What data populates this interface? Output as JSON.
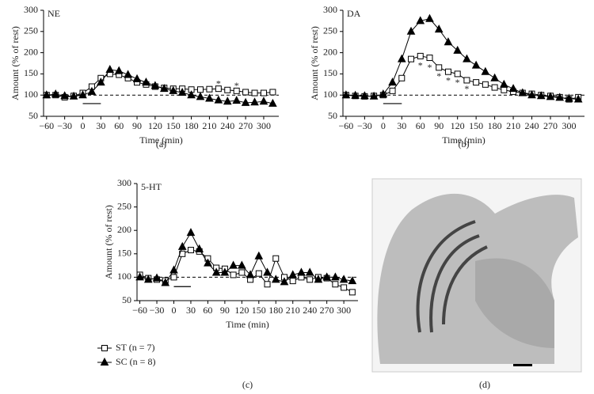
{
  "chart_data": [
    {
      "type": "line",
      "panel": "(a)",
      "label": "NE",
      "x_label": "Time (min)",
      "y_label": "Amount (% of rest)",
      "x": [
        -60,
        -45,
        -30,
        -15,
        0,
        15,
        30,
        45,
        60,
        75,
        90,
        105,
        120,
        135,
        150,
        165,
        180,
        195,
        210,
        225,
        240,
        255,
        270,
        285,
        300,
        315
      ],
      "series": [
        {
          "marker": "square",
          "color": "#000000",
          "fill": "#ffffff",
          "values": [
            100,
            100,
            95,
            98,
            105,
            120,
            140,
            150,
            148,
            140,
            130,
            125,
            120,
            117,
            115,
            115,
            113,
            113,
            114,
            115,
            112,
            110,
            107,
            105,
            105,
            107
          ]
        },
        {
          "marker": "triangle",
          "color": "#000000",
          "fill": "#000000",
          "values": [
            100,
            102,
            98,
            97,
            100,
            108,
            130,
            160,
            157,
            148,
            138,
            130,
            122,
            115,
            110,
            106,
            100,
            96,
            92,
            88,
            85,
            87,
            82,
            83,
            85,
            80
          ]
        }
      ],
      "annotations": [
        {
          "text": "*",
          "x": 225,
          "y": 125
        },
        {
          "text": "*",
          "x": 255,
          "y": 120
        }
      ],
      "reference_line": 100,
      "stimulus_bar": [
        0,
        30
      ],
      "stimulus_bar_level": 80,
      "xlim": [
        -65,
        325
      ],
      "ylim": [
        50,
        300
      ],
      "xticks": [
        {
          "value": -60,
          "label": "−60"
        },
        {
          "value": -30,
          "label": "−30"
        },
        0,
        30,
        60,
        90,
        120,
        150,
        180,
        210,
        240,
        270,
        300
      ],
      "yticks": [
        50,
        100,
        150,
        200,
        250,
        300
      ]
    },
    {
      "type": "line",
      "panel": "(b)",
      "label": "DA",
      "x_label": "Time (min)",
      "y_label": "Amount (% of rest)",
      "x": [
        -60,
        -45,
        -30,
        -15,
        0,
        15,
        30,
        45,
        60,
        75,
        90,
        105,
        120,
        135,
        150,
        165,
        180,
        195,
        210,
        225,
        240,
        255,
        270,
        285,
        300,
        315
      ],
      "series": [
        {
          "marker": "square",
          "color": "#000000",
          "fill": "#ffffff",
          "values": [
            100,
            98,
            97,
            98,
            100,
            110,
            140,
            185,
            192,
            188,
            165,
            155,
            150,
            135,
            130,
            125,
            118,
            112,
            108,
            105,
            103,
            100,
            98,
            95,
            90,
            95
          ]
        },
        {
          "marker": "triangle",
          "color": "#000000",
          "fill": "#000000",
          "values": [
            100,
            99,
            98,
            97,
            102,
            130,
            185,
            250,
            275,
            280,
            255,
            225,
            205,
            185,
            170,
            155,
            140,
            125,
            115,
            105,
            100,
            98,
            96,
            94,
            92,
            90
          ]
        }
      ],
      "annotations": [
        {
          "text": "*",
          "x": 60,
          "y": 168
        },
        {
          "text": "*",
          "x": 75,
          "y": 163
        },
        {
          "text": "*",
          "x": 90,
          "y": 143
        },
        {
          "text": "*",
          "x": 105,
          "y": 133
        },
        {
          "text": "*",
          "x": 120,
          "y": 128
        },
        {
          "text": "*",
          "x": 135,
          "y": 113
        }
      ],
      "reference_line": 100,
      "stimulus_bar": [
        0,
        30
      ],
      "stimulus_bar_level": 80,
      "xlim": [
        -65,
        325
      ],
      "ylim": [
        50,
        300
      ],
      "xticks": [
        {
          "value": -60,
          "label": "−60"
        },
        {
          "value": -30,
          "label": "−30"
        },
        0,
        30,
        60,
        90,
        120,
        150,
        180,
        210,
        240,
        270,
        300
      ],
      "yticks": [
        50,
        100,
        150,
        200,
        250,
        300
      ]
    },
    {
      "type": "line",
      "panel": "(c)",
      "label": "5-HT",
      "x_label": "Time (min)",
      "y_label": "Amount (% of rest)",
      "x": [
        -60,
        -45,
        -30,
        -15,
        0,
        15,
        30,
        45,
        60,
        75,
        90,
        105,
        120,
        135,
        150,
        165,
        180,
        195,
        210,
        225,
        240,
        255,
        270,
        285,
        300,
        315
      ],
      "series": [
        {
          "name": "ST (n = 7)",
          "marker": "square",
          "color": "#000000",
          "fill": "#ffffff",
          "values": [
            105,
            98,
            95,
            93,
            100,
            150,
            158,
            155,
            140,
            120,
            118,
            105,
            110,
            95,
            108,
            85,
            140,
            100,
            92,
            100,
            95,
            100,
            98,
            85,
            78,
            68
          ]
        },
        {
          "name": "SC (n = 8)",
          "marker": "triangle",
          "color": "#000000",
          "fill": "#000000",
          "values": [
            100,
            95,
            98,
            88,
            115,
            165,
            195,
            160,
            130,
            110,
            110,
            125,
            125,
            105,
            145,
            110,
            95,
            90,
            105,
            110,
            110,
            95,
            100,
            100,
            95,
            92
          ]
        }
      ],
      "reference_line": 100,
      "stimulus_bar": [
        0,
        30
      ],
      "stimulus_bar_level": 80,
      "legend": "below",
      "xlim": [
        -65,
        325
      ],
      "ylim": [
        50,
        300
      ],
      "xticks": [
        {
          "value": -60,
          "label": "−60"
        },
        {
          "value": -30,
          "label": "−30"
        },
        0,
        30,
        60,
        90,
        120,
        150,
        180,
        210,
        240,
        270,
        300
      ],
      "yticks": [
        50,
        100,
        150,
        200,
        250,
        300
      ]
    }
  ],
  "image_panel": {
    "panel": "(d)"
  }
}
